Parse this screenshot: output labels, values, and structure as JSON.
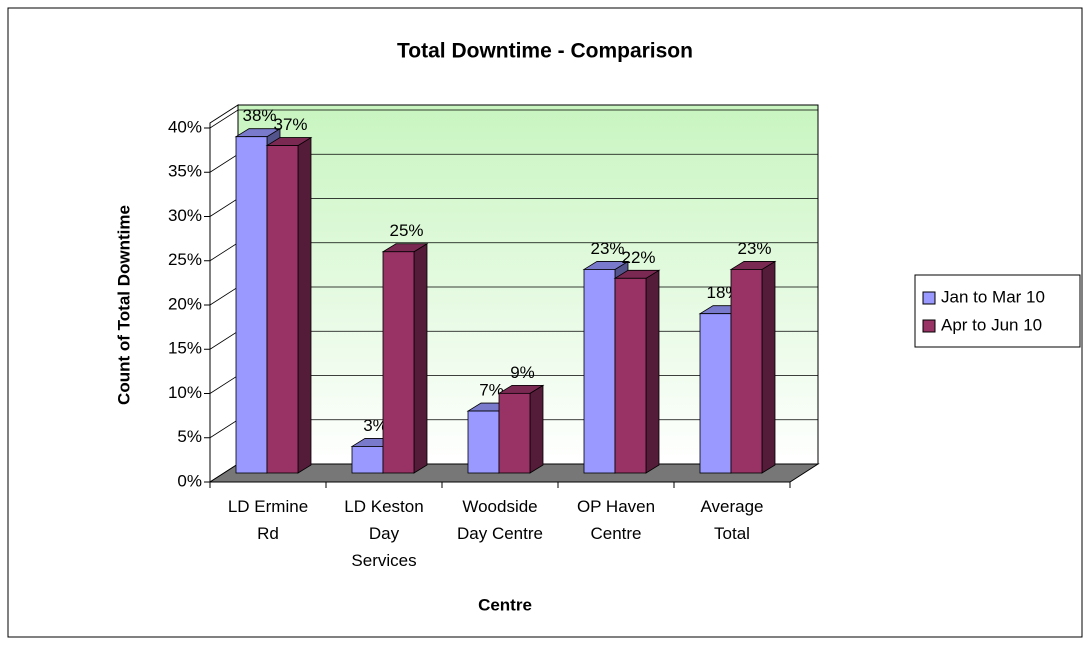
{
  "chart_data": {
    "type": "bar3d",
    "title": "Total Downtime - Comparison",
    "x_label": "Centre",
    "y_label": "Count of Total Downtime",
    "categories": [
      "LD Ermine Rd",
      "LD Keston Day Services",
      "Woodside Day Centre",
      "OP Haven Centre",
      "Average Total"
    ],
    "series": [
      {
        "name": "Jan to Mar 10",
        "color": "#9999ff",
        "values": [
          38,
          3,
          7,
          23,
          18
        ],
        "value_labels": [
          "38%",
          "3%",
          "7%",
          "23%",
          "18%"
        ]
      },
      {
        "name": "Apr to Jun 10",
        "color": "#993366",
        "values": [
          37,
          25,
          9,
          22,
          23
        ],
        "value_labels": [
          "37%",
          "25%",
          "9%",
          "22%",
          "23%"
        ]
      }
    ],
    "ylim": [
      0,
      40
    ],
    "yticks": [
      {
        "value": 0,
        "label": "0%"
      },
      {
        "value": 5,
        "label": "5%"
      },
      {
        "value": 10,
        "label": "10%"
      },
      {
        "value": 15,
        "label": "15%"
      },
      {
        "value": 20,
        "label": "20%"
      },
      {
        "value": 25,
        "label": "25%"
      },
      {
        "value": 30,
        "label": "30%"
      },
      {
        "value": 35,
        "label": "35%"
      },
      {
        "value": 40,
        "label": "40%"
      }
    ],
    "grid": true,
    "legend": "right"
  }
}
